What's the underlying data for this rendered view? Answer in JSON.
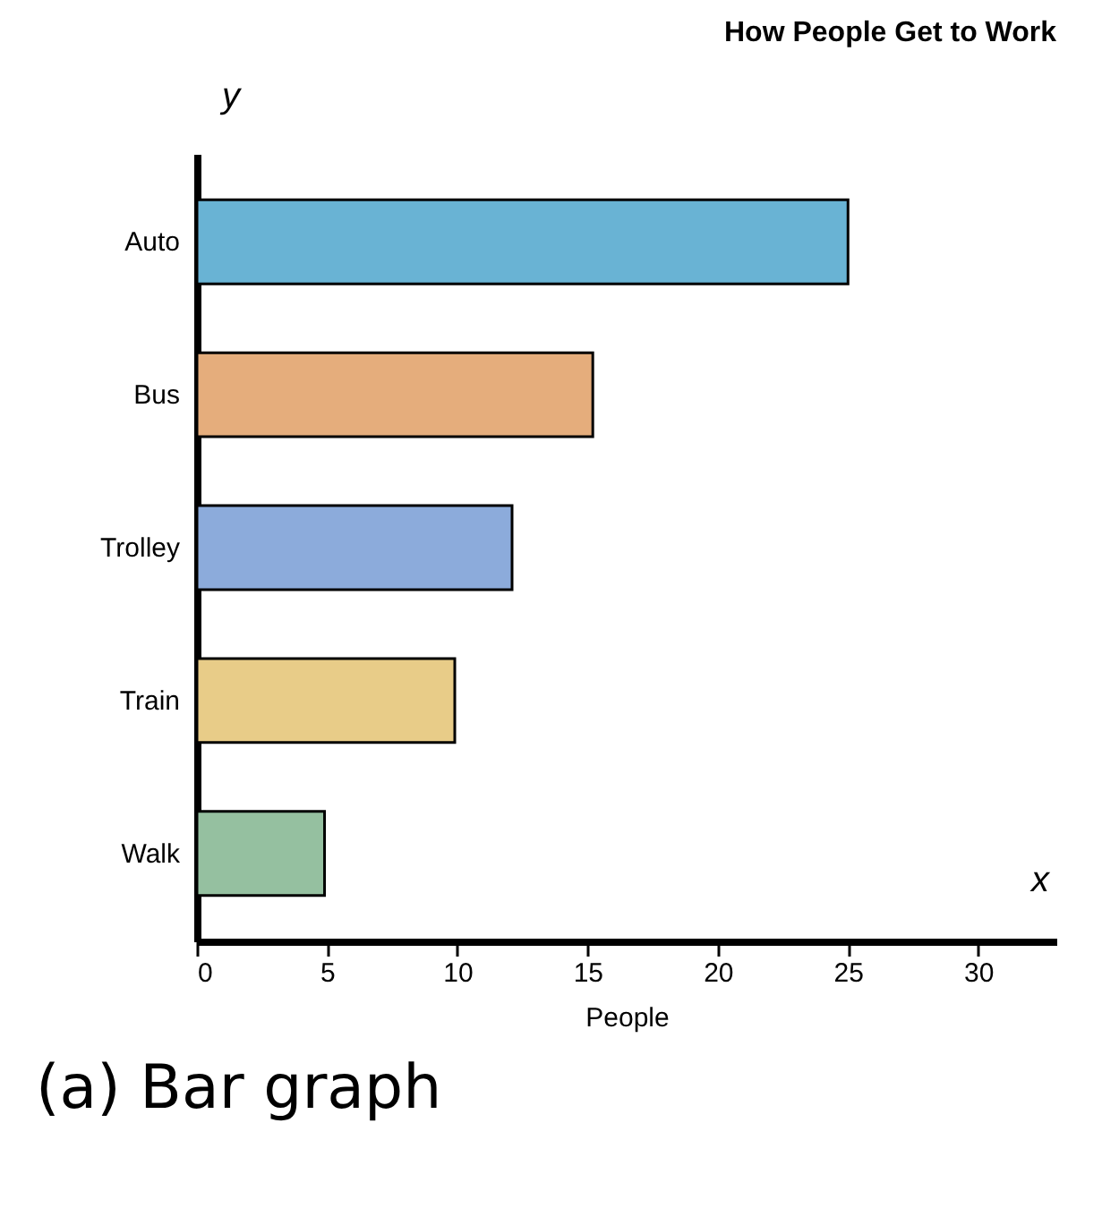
{
  "chart_data": {
    "type": "bar",
    "orientation": "horizontal",
    "title": "How People Get to Work",
    "xlabel": "People",
    "categories": [
      "Auto",
      "Bus",
      "Trolley",
      "Train",
      "Walk"
    ],
    "values": [
      25,
      15.2,
      12.1,
      9.9,
      4.9
    ],
    "colors": [
      "#69b3d4",
      "#e5ad7c",
      "#8cabdb",
      "#e8cc88",
      "#95c0a0"
    ],
    "xlim": [
      0,
      33
    ],
    "xticks": [
      0,
      5,
      10,
      15,
      20,
      25,
      30
    ],
    "grid": false,
    "annotations": [
      "y",
      "x",
      "(a) Bar graph"
    ]
  }
}
